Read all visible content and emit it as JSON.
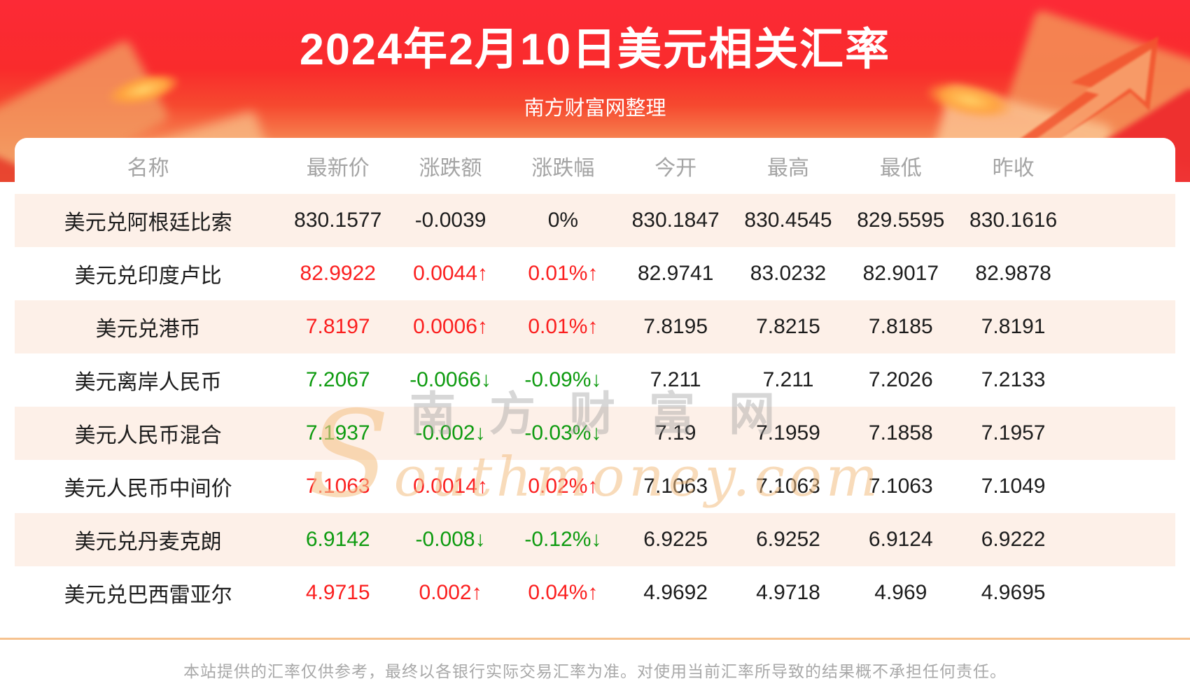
{
  "banner": {
    "title": "2024年2月10日美元相关汇率",
    "subtitle": "南方财富网整理"
  },
  "chart_data": {
    "type": "table",
    "title": "2024年2月10日美元相关汇率",
    "columns": [
      "名称",
      "最新价",
      "涨跌额",
      "涨跌幅",
      "今开",
      "最高",
      "最低",
      "昨收"
    ],
    "rows": [
      {
        "name": "美元兑阿根廷比索",
        "latest": "830.1577",
        "change": "-0.0039",
        "pct": "0%",
        "open": "830.1847",
        "high": "830.4545",
        "low": "829.5595",
        "prev": "830.1616",
        "trend": "flat"
      },
      {
        "name": "美元兑印度卢比",
        "latest": "82.9922",
        "change": "0.0044↑",
        "pct": "0.01%↑",
        "open": "82.9741",
        "high": "83.0232",
        "low": "82.9017",
        "prev": "82.9878",
        "trend": "up"
      },
      {
        "name": "美元兑港币",
        "latest": "7.8197",
        "change": "0.0006↑",
        "pct": "0.01%↑",
        "open": "7.8195",
        "high": "7.8215",
        "low": "7.8185",
        "prev": "7.8191",
        "trend": "up"
      },
      {
        "name": "美元离岸人民币",
        "latest": "7.2067",
        "change": "-0.0066↓",
        "pct": "-0.09%↓",
        "open": "7.211",
        "high": "7.211",
        "low": "7.2026",
        "prev": "7.2133",
        "trend": "down"
      },
      {
        "name": "美元人民币混合",
        "latest": "7.1937",
        "change": "-0.002↓",
        "pct": "-0.03%↓",
        "open": "7.19",
        "high": "7.1959",
        "low": "7.1858",
        "prev": "7.1957",
        "trend": "down"
      },
      {
        "name": "美元人民币中间价",
        "latest": "7.1063",
        "change": "0.0014↑",
        "pct": "0.02%↑",
        "open": "7.1063",
        "high": "7.1063",
        "low": "7.1063",
        "prev": "7.1049",
        "trend": "up"
      },
      {
        "name": "美元兑丹麦克朗",
        "latest": "6.9142",
        "change": "-0.008↓",
        "pct": "-0.12%↓",
        "open": "6.9225",
        "high": "6.9252",
        "low": "6.9124",
        "prev": "6.9222",
        "trend": "down"
      },
      {
        "name": "美元兑巴西雷亚尔",
        "latest": "4.9715",
        "change": "0.002↑",
        "pct": "0.04%↑",
        "open": "4.9692",
        "high": "4.9718",
        "low": "4.969",
        "prev": "4.9695",
        "trend": "up"
      }
    ]
  },
  "watermark": {
    "cn": "南方财富网",
    "en": "Southmoney.com"
  },
  "footer": {
    "disclaimer": "本站提供的汇率仅供参考，最终以各银行实际交易汇率为准。对使用当前汇率所导致的结果概不承担任何责任。"
  },
  "colors": {
    "banner_red_top": "#fc2a36",
    "banner_peach_bottom": "#fcd9ae",
    "row_stripe": "#fdf0e8",
    "up_red": "#fb1f1f",
    "down_green": "#0e9b10",
    "header_text": "#a4a4a4",
    "divider": "#f6c28f",
    "footer_text": "#a8a8a8"
  }
}
